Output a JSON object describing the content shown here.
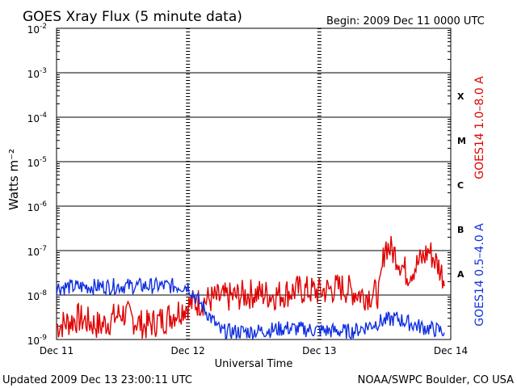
{
  "header": {
    "title": "GOES Xray Flux (5 minute data)",
    "begin": "Begin:  2009 Dec 11 0000 UTC"
  },
  "footer": {
    "updated": "Updated 2009 Dec 13 23:00:11 UTC",
    "credit": "NOAA/SWPC Boulder, CO USA"
  },
  "colors": {
    "long_channel": "#e00000",
    "short_channel": "#1030e0",
    "axes": "#000000",
    "background": "#ffffff"
  },
  "chart_data": {
    "type": "line",
    "title": "GOES Xray Flux (5 minute data)",
    "xlabel": "Universal Time",
    "ylabel": "Watts m⁻²",
    "yscale": "log",
    "ylim": [
      1e-09,
      0.01
    ],
    "grid": true,
    "x_ticks": [
      "Dec 11",
      "Dec 12",
      "Dec 13",
      "Dec 14"
    ],
    "y_ticks": [
      {
        "base": "10",
        "exp": "-2"
      },
      {
        "base": "10",
        "exp": "-3"
      },
      {
        "base": "10",
        "exp": "-4"
      },
      {
        "base": "10",
        "exp": "-5"
      },
      {
        "base": "10",
        "exp": "-6"
      },
      {
        "base": "10",
        "exp": "-7"
      },
      {
        "base": "10",
        "exp": "-8"
      },
      {
        "base": "10",
        "exp": "-9"
      }
    ],
    "flare_classes": [
      {
        "label": "X",
        "flux": 0.0003
      },
      {
        "label": "M",
        "flux": 3e-05
      },
      {
        "label": "C",
        "flux": 3e-06
      },
      {
        "label": "B",
        "flux": 3e-07
      },
      {
        "label": "A",
        "flux": 3e-08
      }
    ],
    "series": [
      {
        "name": "GOES14 1.0–8.0 A",
        "x": [
          "2009-12-11 00:00",
          "2009-12-11 04:00",
          "2009-12-11 08:00",
          "2009-12-11 12:00",
          "2009-12-11 16:00",
          "2009-12-11 20:00",
          "2009-12-12 00:00",
          "2009-12-12 04:00",
          "2009-12-12 08:00",
          "2009-12-12 12:00",
          "2009-12-12 16:00",
          "2009-12-12 20:00",
          "2009-12-13 00:00",
          "2009-12-13 04:00",
          "2009-12-13 08:00",
          "2009-12-13 11:00",
          "2009-12-13 12:00",
          "2009-12-13 14:00",
          "2009-12-13 16:00",
          "2009-12-13 18:00",
          "2009-12-13 20:00",
          "2009-12-13 22:00",
          "2009-12-13 23:00"
        ],
        "values": [
          2e-09,
          3e-09,
          2e-09,
          4e-09,
          2e-09,
          3e-09,
          6e-09,
          8e-09,
          9e-09,
          1.1e-08,
          1e-08,
          1.3e-08,
          1.2e-08,
          1.5e-08,
          1e-08,
          1.1e-08,
          1.4e-07,
          8e-08,
          3e-08,
          5e-08,
          1e-07,
          4e-08,
          2e-08
        ]
      },
      {
        "name": "GOES14 0.5–4.0 A",
        "x": [
          "2009-12-11 00:00",
          "2009-12-11 12:00",
          "2009-12-12 00:00",
          "2009-12-12 06:00",
          "2009-12-12 12:00",
          "2009-12-12 18:00",
          "2009-12-13 00:00",
          "2009-12-13 06:00",
          "2009-12-13 11:00",
          "2009-12-13 14:00",
          "2009-12-13 18:00",
          "2009-12-13 23:00"
        ],
        "values": [
          1.5e-08,
          1.6e-08,
          1.6e-08,
          1.5e-09,
          1.5e-09,
          1.8e-09,
          1.6e-09,
          1.5e-09,
          2.5e-09,
          3e-09,
          2e-09,
          1.5e-09
        ]
      }
    ]
  }
}
